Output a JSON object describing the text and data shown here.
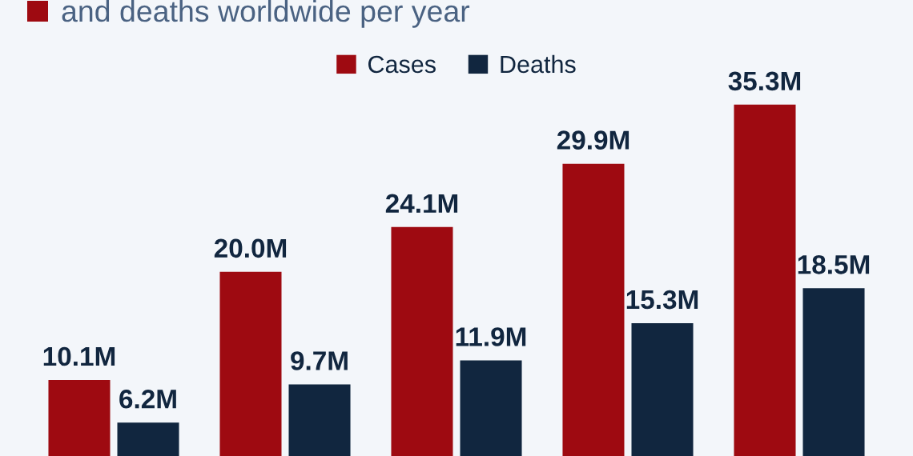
{
  "chart_data": {
    "type": "bar",
    "title": "and deaths worldwide per year",
    "categories": [
      null,
      null,
      null,
      null,
      null
    ],
    "series": [
      {
        "name": "Cases",
        "color": "#9e0a11",
        "values": [
          10.1,
          20.0,
          24.1,
          29.9,
          35.3
        ],
        "value_labels": [
          "10.1M",
          "20.0M",
          "24.1M",
          "29.9M",
          "35.3M"
        ]
      },
      {
        "name": "Deaths",
        "color": "#11263f",
        "values": [
          6.2,
          9.7,
          11.9,
          15.3,
          18.5
        ],
        "value_labels": [
          "6.2M",
          "9.7M",
          "11.9M",
          "15.3M",
          "18.5M"
        ]
      }
    ],
    "legend": "top"
  }
}
